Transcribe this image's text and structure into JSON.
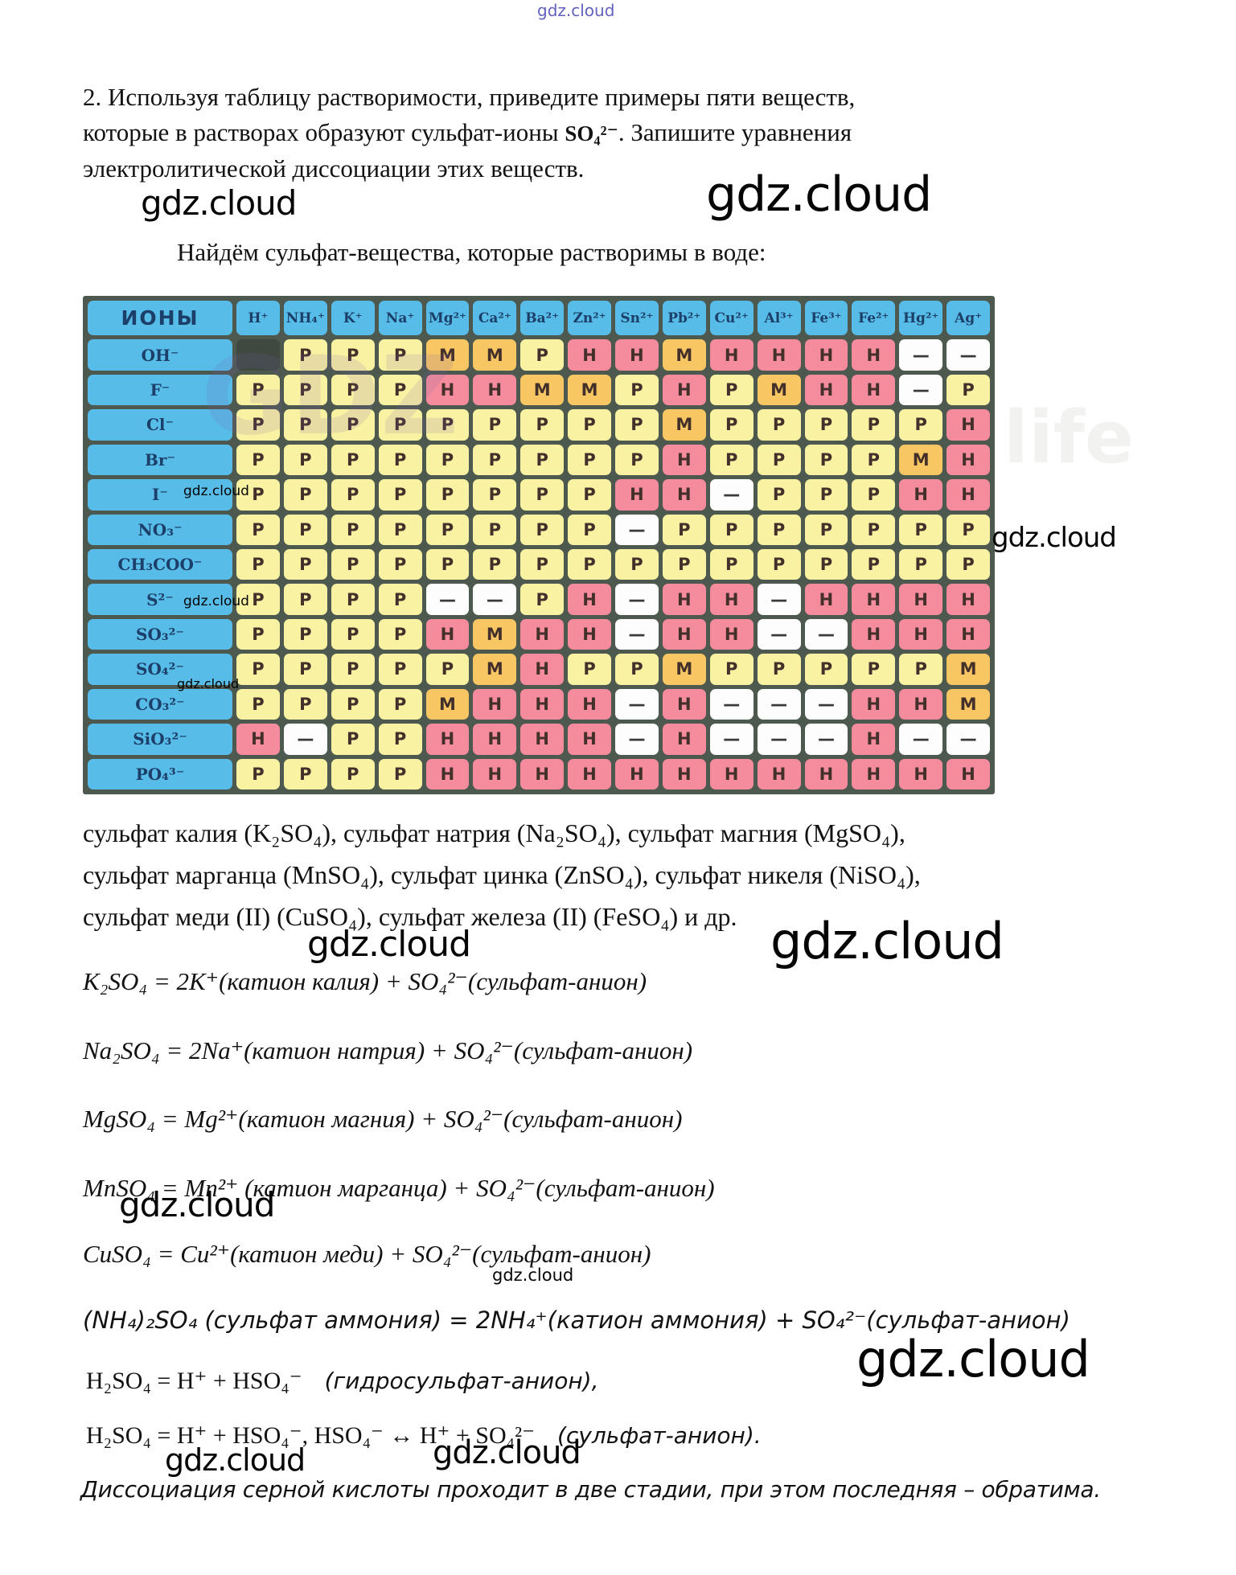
{
  "watermark": {
    "text": "gdz.cloud",
    "top_text": "gdz.cloud",
    "ghost_gd": "GDZ",
    "ghost_life": "life"
  },
  "question": {
    "line1": "2. Используя таблицу растворимости, приведите примеры пяти веществ,",
    "line2_before": "которые в растворах образуют сульфат-ионы ",
    "line2_formula": "SO₄²⁻",
    "line2_after": ". Запишите уравнения",
    "line3": "электролитической диссоциации этих веществ."
  },
  "intro": "Найдём сульфат-вещества, которые растворимы в воде:",
  "solubility_table": {
    "corner_label": "ИОНЫ",
    "cations": [
      "H⁺",
      "NH₄⁺",
      "K⁺",
      "Na⁺",
      "Mg²⁺",
      "Ca²⁺",
      "Ba²⁺",
      "Zn²⁺",
      "Sn²⁺",
      "Pb²⁺",
      "Cu²⁺",
      "Al³⁺",
      "Fe³⁺",
      "Fe²⁺",
      "Hg²⁺",
      "Ag⁺"
    ],
    "rows": [
      {
        "anion": "OH⁻",
        "values": [
          "",
          "Р",
          "Р",
          "Р",
          "М",
          "М",
          "Р",
          "Н",
          "Н",
          "М",
          "Н",
          "Н",
          "Н",
          "Н",
          "—",
          "—"
        ]
      },
      {
        "anion": "F⁻",
        "values": [
          "Р",
          "Р",
          "Р",
          "Р",
          "Н",
          "Н",
          "М",
          "М",
          "Р",
          "Н",
          "Р",
          "М",
          "Н",
          "Н",
          "—",
          "Р"
        ]
      },
      {
        "anion": "Cl⁻",
        "values": [
          "Р",
          "Р",
          "Р",
          "Р",
          "Р",
          "Р",
          "Р",
          "Р",
          "Р",
          "М",
          "Р",
          "Р",
          "Р",
          "Р",
          "Р",
          "Н"
        ]
      },
      {
        "anion": "Br⁻",
        "values": [
          "Р",
          "Р",
          "Р",
          "Р",
          "Р",
          "Р",
          "Р",
          "Р",
          "Р",
          "Н",
          "Р",
          "Р",
          "Р",
          "Р",
          "М",
          "Н"
        ]
      },
      {
        "anion": "I⁻",
        "values": [
          "Р",
          "Р",
          "Р",
          "Р",
          "Р",
          "Р",
          "Р",
          "Р",
          "Н",
          "Н",
          "—",
          "Р",
          "Р",
          "Р",
          "Н",
          "Н"
        ]
      },
      {
        "anion": "NO₃⁻",
        "values": [
          "Р",
          "Р",
          "Р",
          "Р",
          "Р",
          "Р",
          "Р",
          "Р",
          "—",
          "Р",
          "Р",
          "Р",
          "Р",
          "Р",
          "Р",
          "Р"
        ]
      },
      {
        "anion": "CH₃COO⁻",
        "values": [
          "Р",
          "Р",
          "Р",
          "Р",
          "Р",
          "Р",
          "Р",
          "Р",
          "Р",
          "Р",
          "Р",
          "Р",
          "Р",
          "Р",
          "Р",
          "Р"
        ]
      },
      {
        "anion": "S²⁻",
        "values": [
          "Р",
          "Р",
          "Р",
          "Р",
          "—",
          "—",
          "Р",
          "Н",
          "—",
          "Н",
          "Н",
          "—",
          "Н",
          "Н",
          "Н",
          "Н"
        ]
      },
      {
        "anion": "SO₃²⁻",
        "values": [
          "Р",
          "Р",
          "Р",
          "Р",
          "Н",
          "М",
          "Н",
          "Н",
          "—",
          "Н",
          "Н",
          "—",
          "—",
          "Н",
          "Н",
          "Н"
        ]
      },
      {
        "anion": "SO₄²⁻",
        "values": [
          "Р",
          "Р",
          "Р",
          "Р",
          "Р",
          "М",
          "Н",
          "Р",
          "Р",
          "М",
          "Р",
          "Р",
          "Р",
          "Р",
          "Р",
          "М"
        ]
      },
      {
        "anion": "CO₃²⁻",
        "values": [
          "Р",
          "Р",
          "Р",
          "Р",
          "М",
          "Н",
          "Н",
          "Н",
          "—",
          "Н",
          "—",
          "—",
          "—",
          "Н",
          "Н",
          "М"
        ]
      },
      {
        "anion": "SiO₃²⁻",
        "values": [
          "Н",
          "—",
          "Р",
          "Р",
          "Н",
          "Н",
          "Н",
          "Н",
          "—",
          "Н",
          "—",
          "—",
          "—",
          "Н",
          "—",
          "—"
        ]
      },
      {
        "anion": "PO₄³⁻",
        "values": [
          "Р",
          "Р",
          "Р",
          "Р",
          "Н",
          "Н",
          "Н",
          "Н",
          "Н",
          "Н",
          "Н",
          "Н",
          "Н",
          "Н",
          "Н",
          "Н"
        ]
      }
    ],
    "colors": {
      "header_blue": "#58bce9",
      "soluble_yellow": "#f9f2a3",
      "slightly_soluble_orange": "#f8c763",
      "insoluble_pink": "#f58c9d",
      "not_exists_white": "#fdfdfd",
      "frame": "#4d594f"
    }
  },
  "sulfates_paragraph": {
    "line1": "сульфат калия (K₂SO₄), сульфат натрия (Na₂SO₄), сульфат магния (MgSO₄),",
    "line2": "сульфат марганца (MnSO₄), сульфат цинка (ZnSO₄), сульфат никеля (NiSO₄),",
    "line3": "сульфат меди (II) (CuSO₄), сульфат железа (II) (FeSO₄) и др."
  },
  "equations": {
    "k2so4": "K₂SO₄ = 2K⁺(катион калия) + SO₄²⁻(сульфат-анион)",
    "na2so4": "Na₂SO₄ = 2Na⁺(катион натрия) + SO₄²⁻(сульфат-анион)",
    "mgso4": "MgSO₄ = Mg²⁺(катион магния) + SO₄²⁻(сульфат-анион)",
    "mnso4": "MnSO₄ = Mn²⁺ (катион марганца) + SO₄²⁻(сульфат-анион)",
    "cuso4": "CuSO₄ = Cu²⁺(катион меди) + SO₄²⁻(сульфат-анион)",
    "nh42so4": "(NH₄)₂SO₄ (сульфат аммония) = 2NH₄⁺(катион аммония) + SO₄²⁻(сульфат-анион)",
    "h2so4_1_formula": "H₂SO₄ = H⁺ + HSO₄⁻",
    "h2so4_1_note": "(гидросульфат-анион),",
    "h2so4_2_formula": "H₂SO₄ = H⁺ + HSO₄⁻,  HSO₄⁻ ↔ H⁺ + SO₄²⁻",
    "h2so4_2_note": "(сульфат-анион)."
  },
  "conclusion": "Диссоциация серной кислоты проходит в две стадии, при этом последняя – обратима."
}
